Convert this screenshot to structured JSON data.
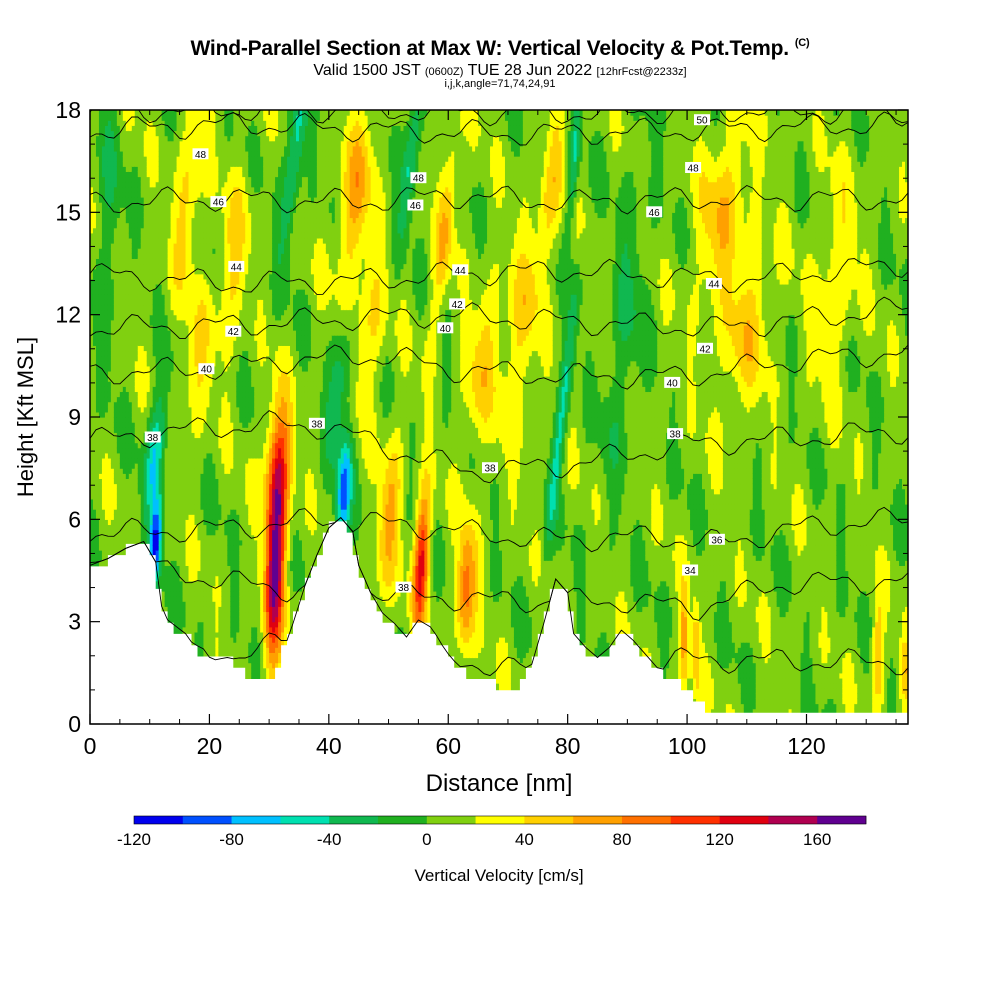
{
  "header": {
    "title": "Wind-Parallel Section at Max W: Vertical Velocity & Pot.Temp.",
    "title_mark": "(C)",
    "subtitle_a": "Valid 1500 JST",
    "subtitle_b": "(0600Z)",
    "subtitle_c": "TUE 28 Jun 2022",
    "subtitle_d": "[12hrFcst@2233z]",
    "params": "i,j,k,angle=71,74,24,91"
  },
  "chart_data": {
    "type": "heatmap",
    "xlabel": "Distance [nm]",
    "ylabel": "Height [Kft MSL]",
    "xlim": [
      0,
      137
    ],
    "ylim": [
      0,
      18
    ],
    "xticks": [
      0,
      20,
      40,
      60,
      80,
      100,
      120
    ],
    "yticks": [
      0,
      3,
      6,
      9,
      12,
      15,
      18
    ],
    "colorbar": {
      "label": "Vertical Velocity [cm/s]",
      "ticks": [
        -120,
        -80,
        -40,
        0,
        40,
        80,
        120,
        160
      ],
      "bounds": [
        -120,
        180
      ],
      "colors": [
        "#0000ee",
        "#0050ff",
        "#00c0ff",
        "#00e0b0",
        "#10b850",
        "#20b020",
        "#80d010",
        "#ffff00",
        "#ffd000",
        "#ffa000",
        "#ff7000",
        "#ff3000",
        "#e00010",
        "#b00050",
        "#600090"
      ]
    },
    "terrain_kft": [
      [
        0,
        4.6
      ],
      [
        3,
        4.8
      ],
      [
        6,
        5.1
      ],
      [
        9,
        5.3
      ],
      [
        11,
        4.7
      ],
      [
        12,
        3.4
      ],
      [
        13,
        3.0
      ],
      [
        16,
        2.6
      ],
      [
        18,
        2.1
      ],
      [
        20,
        1.8
      ],
      [
        23,
        1.9
      ],
      [
        25,
        1.7
      ],
      [
        27,
        1.4
      ],
      [
        30,
        1.3
      ],
      [
        32,
        1.9
      ],
      [
        34,
        2.9
      ],
      [
        36,
        4.0
      ],
      [
        38,
        4.9
      ],
      [
        40,
        5.7
      ],
      [
        42,
        6.0
      ],
      [
        44,
        5.6
      ],
      [
        45,
        4.6
      ],
      [
        47,
        3.8
      ],
      [
        49,
        3.2
      ],
      [
        51,
        2.9
      ],
      [
        53,
        2.5
      ],
      [
        55,
        3.0
      ],
      [
        57,
        2.8
      ],
      [
        59,
        2.3
      ],
      [
        61,
        1.8
      ],
      [
        63,
        1.5
      ],
      [
        66,
        1.4
      ],
      [
        68,
        1.2
      ],
      [
        70,
        1.0
      ],
      [
        72,
        1.1
      ],
      [
        74,
        1.7
      ],
      [
        76,
        2.9
      ],
      [
        78,
        4.2
      ],
      [
        80,
        3.8
      ],
      [
        81,
        2.6
      ],
      [
        83,
        2.2
      ],
      [
        85,
        1.9
      ],
      [
        87,
        2.2
      ],
      [
        89,
        2.7
      ],
      [
        91,
        2.4
      ],
      [
        93,
        2.0
      ],
      [
        95,
        1.6
      ],
      [
        97,
        1.4
      ],
      [
        99,
        1.1
      ],
      [
        101,
        0.8
      ],
      [
        103,
        0.5
      ],
      [
        105,
        0.4
      ],
      [
        110,
        0.35
      ],
      [
        120,
        0.35
      ],
      [
        130,
        0.35
      ],
      [
        137,
        0.35
      ]
    ],
    "updrafts": [
      {
        "x": 16.5,
        "z": 15.5,
        "value": 40,
        "width": 2.2,
        "halfheight": 2.8,
        "tilt": 0.22
      },
      {
        "x": 18.0,
        "z": 10.5,
        "value": 30,
        "width": 2.5,
        "halfheight": 2.2,
        "tilt": 0.2
      },
      {
        "x": 24.0,
        "z": 13.5,
        "value": 38,
        "width": 2.4,
        "halfheight": 2.5,
        "tilt": 0.2
      },
      {
        "x": 31.0,
        "z": 4.5,
        "value": 150,
        "width": 1.6,
        "halfheight": 2.8,
        "tilt": 0.08
      },
      {
        "x": 31.5,
        "z": 7.5,
        "value": 90,
        "width": 2.2,
        "halfheight": 2.0,
        "tilt": 0.1
      },
      {
        "x": 44.5,
        "z": 15.5,
        "value": 55,
        "width": 2.6,
        "halfheight": 2.8,
        "tilt": 0.25
      },
      {
        "x": 46.5,
        "z": 11.5,
        "value": 38,
        "width": 2.8,
        "halfheight": 2.2,
        "tilt": 0.25
      },
      {
        "x": 50.0,
        "z": 6.0,
        "value": 55,
        "width": 1.8,
        "halfheight": 2.5,
        "tilt": 0.18
      },
      {
        "x": 55.5,
        "z": 4.8,
        "value": 120,
        "width": 1.3,
        "halfheight": 2.0,
        "tilt": 0.12
      },
      {
        "x": 59.5,
        "z": 14.5,
        "value": 45,
        "width": 1.5,
        "halfheight": 3.2,
        "tilt": 0.3
      },
      {
        "x": 63.0,
        "z": 4.0,
        "value": 85,
        "width": 1.6,
        "halfheight": 1.8,
        "tilt": 0.1
      },
      {
        "x": 65.5,
        "z": 10.5,
        "value": 40,
        "width": 2.5,
        "halfheight": 2.4,
        "tilt": 0.25
      },
      {
        "x": 72.0,
        "z": 11.5,
        "value": 35,
        "width": 3.0,
        "halfheight": 3.2,
        "tilt": 0.2
      },
      {
        "x": 77.0,
        "z": 15.5,
        "value": 40,
        "width": 1.8,
        "halfheight": 2.5,
        "tilt": 0.3
      },
      {
        "x": 106.0,
        "z": 15.0,
        "value": 45,
        "width": 4.0,
        "halfheight": 2.8,
        "tilt": 0.3
      },
      {
        "x": 110.0,
        "z": 11.5,
        "value": 38,
        "width": 4.0,
        "halfheight": 2.5,
        "tilt": 0.35
      },
      {
        "x": 125.0,
        "z": 13.0,
        "value": 30,
        "width": 3.5,
        "halfheight": 3.0,
        "tilt": 0.2
      },
      {
        "x": 99.5,
        "z": 2.5,
        "value": 60,
        "width": 0.8,
        "halfheight": 1.6,
        "tilt": 0.0
      },
      {
        "x": 101.5,
        "z": 2.2,
        "value": 50,
        "width": 0.7,
        "halfheight": 1.4,
        "tilt": 0.0
      },
      {
        "x": 132.0,
        "z": 2.0,
        "value": 55,
        "width": 1.0,
        "halfheight": 1.5,
        "tilt": 0.0
      },
      {
        "x": 136.5,
        "z": 1.6,
        "value": 45,
        "width": 0.8,
        "halfheight": 1.0,
        "tilt": 0.0
      }
    ],
    "downdrafts": [
      {
        "x": 11.0,
        "z": 5.3,
        "value": -110,
        "width": 1.0,
        "halfheight": 1.3,
        "tilt": 0.15
      },
      {
        "x": 11.0,
        "z": 8.0,
        "value": -65,
        "width": 1.6,
        "halfheight": 2.0,
        "tilt": 0.25
      },
      {
        "x": 34.5,
        "z": 17.0,
        "value": -60,
        "width": 1.4,
        "halfheight": 3.0,
        "tilt": 0.3
      },
      {
        "x": 42.5,
        "z": 6.8,
        "value": -95,
        "width": 1.2,
        "halfheight": 1.6,
        "tilt": 0.15
      },
      {
        "x": 42.0,
        "z": 10.0,
        "value": -50,
        "width": 2.0,
        "halfheight": 2.0,
        "tilt": 0.25
      },
      {
        "x": 54.0,
        "z": 17.0,
        "value": -55,
        "width": 1.2,
        "halfheight": 3.0,
        "tilt": 0.3
      },
      {
        "x": 79.0,
        "z": 9.0,
        "value": -55,
        "width": 1.0,
        "halfheight": 4.0,
        "tilt": 0.3
      },
      {
        "x": 81.0,
        "z": 16.5,
        "value": -45,
        "width": 0.8,
        "halfheight": 2.2,
        "tilt": 0.2
      },
      {
        "x": 3.0,
        "z": 15.0,
        "value": -25,
        "width": 2.0,
        "halfheight": 4.0,
        "tilt": 0.0
      },
      {
        "x": 90.0,
        "z": 12.0,
        "value": -25,
        "width": 3.0,
        "halfheight": 5.0,
        "tilt": 0.2
      }
    ],
    "theta_contours": [
      {
        "value": 32,
        "base_kft": 2.6,
        "offsets": [
          [
            0,
            0.3
          ],
          [
            10,
            -0.6
          ],
          [
            25,
            -0.6
          ],
          [
            40,
            0.2
          ],
          [
            60,
            -0.7
          ],
          [
            80,
            -1.2
          ],
          [
            100,
            -0.7
          ],
          [
            137,
            -0.8
          ]
        ]
      },
      {
        "value": 34,
        "base_kft": 4.2,
        "offsets": [
          [
            0,
            0.4
          ],
          [
            15,
            0.2
          ],
          [
            30,
            -0.2
          ],
          [
            50,
            -0.4
          ],
          [
            70,
            -0.6
          ],
          [
            90,
            -0.6
          ],
          [
            102,
            -0.8
          ],
          [
            115,
            -0.1
          ],
          [
            137,
            0.0
          ]
        ]
      },
      {
        "value": 36,
        "base_kft": 5.8,
        "offsets": [
          [
            0,
            -0.2
          ],
          [
            20,
            -0.1
          ],
          [
            40,
            0.2
          ],
          [
            55,
            0.0
          ],
          [
            75,
            -0.4
          ],
          [
            95,
            -0.3
          ],
          [
            106,
            -0.5
          ],
          [
            120,
            0.0
          ],
          [
            137,
            0.2
          ]
        ]
      },
      {
        "value": 38,
        "base_kft": 7.4,
        "offsets": [
          [
            0,
            0.9
          ],
          [
            15,
            1.2
          ],
          [
            30,
            1.4
          ],
          [
            40,
            1.3
          ],
          [
            55,
            0.4
          ],
          [
            65,
            0.0
          ],
          [
            80,
            0.2
          ],
          [
            100,
            0.8
          ],
          [
            120,
            1.0
          ],
          [
            137,
            1.2
          ]
        ]
      },
      {
        "value": 40,
        "base_kft": 9.4,
        "offsets": [
          [
            0,
            0.9
          ],
          [
            20,
            1.0
          ],
          [
            35,
            1.3
          ],
          [
            50,
            1.4
          ],
          [
            60,
            1.0
          ],
          [
            80,
            0.8
          ],
          [
            100,
            0.8
          ],
          [
            120,
            1.3
          ],
          [
            137,
            1.5
          ]
        ]
      },
      {
        "value": 42,
        "base_kft": 11.0,
        "offsets": [
          [
            0,
            0.6
          ],
          [
            25,
            0.7
          ],
          [
            45,
            0.9
          ],
          [
            60,
            1.0
          ],
          [
            80,
            0.8
          ],
          [
            105,
            0.6
          ],
          [
            137,
            1.2
          ]
        ]
      },
      {
        "value": 44,
        "base_kft": 12.7,
        "offsets": [
          [
            0,
            0.5
          ],
          [
            25,
            0.2
          ],
          [
            45,
            0.3
          ],
          [
            62,
            0.5
          ],
          [
            80,
            0.6
          ],
          [
            108,
            0.3
          ],
          [
            137,
            0.8
          ]
        ]
      },
      {
        "value": 46,
        "base_kft": 14.8,
        "offsets": [
          [
            0,
            0.5
          ],
          [
            25,
            0.6
          ],
          [
            45,
            0.5
          ],
          [
            60,
            0.7
          ],
          [
            80,
            0.5
          ],
          [
            100,
            0.6
          ],
          [
            137,
            0.6
          ]
        ]
      },
      {
        "value": 48,
        "base_kft": 16.8,
        "offsets": [
          [
            0,
            0.6
          ],
          [
            25,
            0.8
          ],
          [
            50,
            0.6
          ],
          [
            70,
            0.5
          ],
          [
            100,
            0.6
          ],
          [
            137,
            0.8
          ]
        ]
      },
      {
        "value": 50,
        "base_kft": 17.7,
        "offsets": [
          [
            0,
            0.3
          ],
          [
            40,
            0.3
          ],
          [
            80,
            0.2
          ],
          [
            104,
            0.3
          ],
          [
            137,
            0.2
          ]
        ]
      }
    ],
    "contour_labels": [
      {
        "text": "48",
        "x": 18.5,
        "y": 16.7
      },
      {
        "text": "46",
        "x": 21.5,
        "y": 15.3
      },
      {
        "text": "44",
        "x": 24.5,
        "y": 13.4
      },
      {
        "text": "42",
        "x": 24.0,
        "y": 11.5
      },
      {
        "text": "40",
        "x": 19.5,
        "y": 10.4
      },
      {
        "text": "38",
        "x": 10.5,
        "y": 8.4
      },
      {
        "text": "38",
        "x": 38.0,
        "y": 8.8
      },
      {
        "text": "48",
        "x": 55.0,
        "y": 16.0
      },
      {
        "text": "46",
        "x": 54.5,
        "y": 15.2
      },
      {
        "text": "44",
        "x": 62.0,
        "y": 13.3
      },
      {
        "text": "42",
        "x": 61.5,
        "y": 12.3
      },
      {
        "text": "40",
        "x": 59.5,
        "y": 11.6
      },
      {
        "text": "38",
        "x": 67.0,
        "y": 7.5
      },
      {
        "text": "38",
        "x": 52.5,
        "y": 4.0
      },
      {
        "text": "50",
        "x": 102.5,
        "y": 17.7
      },
      {
        "text": "48",
        "x": 101.0,
        "y": 16.3
      },
      {
        "text": "46",
        "x": 94.5,
        "y": 15.0
      },
      {
        "text": "44",
        "x": 104.5,
        "y": 12.9
      },
      {
        "text": "42",
        "x": 103.0,
        "y": 11.0
      },
      {
        "text": "40",
        "x": 97.5,
        "y": 10.0
      },
      {
        "text": "38",
        "x": 98.0,
        "y": 8.5
      },
      {
        "text": "36",
        "x": 105.0,
        "y": 5.4
      },
      {
        "text": "34",
        "x": 100.5,
        "y": 4.5
      }
    ]
  }
}
